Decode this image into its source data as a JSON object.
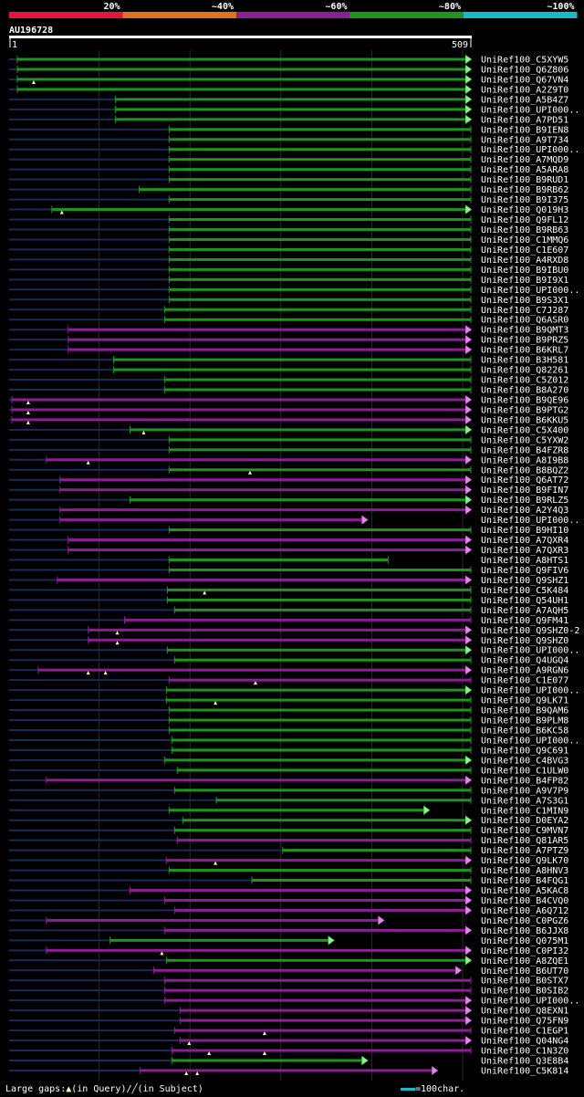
{
  "colors": {
    "background": "#000000",
    "scale": [
      "#e8143c",
      "#e0731a",
      "#8c1e96",
      "#1e961e",
      "#14bcc8"
    ],
    "stub": "#1a2a5a",
    "gap": "#ffffa0"
  },
  "identity_scale": [
    "20%",
    "~40%",
    "~60%",
    "~80%",
    "~100%"
  ],
  "query": {
    "name": "AU196728",
    "start": "1",
    "end": "509"
  },
  "footer": {
    "legend_label": "Large gaps:",
    "legend_query": "(in Query)/",
    "legend_subject": "(in Subject)",
    "scale_text": "=100char."
  },
  "chart_data": {
    "type": "bar",
    "title": "AU196728",
    "xlim": [
      1,
      509
    ],
    "x_ticks": [
      1,
      100,
      200,
      300,
      400,
      500,
      509
    ],
    "series": [
      {
        "name": "UniRef100_C5XYW5",
        "start": 10,
        "end": 509,
        "color": "green",
        "more": true,
        "gaps": []
      },
      {
        "name": "UniRef100_Q6Z806",
        "start": 10,
        "end": 509,
        "color": "green",
        "more": true,
        "gaps": []
      },
      {
        "name": "UniRef100_Q67VN4",
        "start": 10,
        "end": 509,
        "color": "green",
        "more": true,
        "gaps": [
          {
            "pos": 28,
            "type": "query"
          }
        ]
      },
      {
        "name": "UniRef100_A2Z9T0",
        "start": 10,
        "end": 509,
        "color": "green",
        "more": true,
        "gaps": []
      },
      {
        "name": "UniRef100_A5B4Z7",
        "start": 118,
        "end": 509,
        "color": "green",
        "more": true,
        "gaps": []
      },
      {
        "name": "UniRef100_UPI000..",
        "start": 118,
        "end": 509,
        "color": "green",
        "more": true,
        "gaps": []
      },
      {
        "name": "UniRef100_A7PD51",
        "start": 118,
        "end": 509,
        "color": "green",
        "more": true,
        "gaps": []
      },
      {
        "name": "UniRef100_B9IEN8",
        "start": 177,
        "end": 509,
        "color": "green",
        "more": false,
        "gaps": []
      },
      {
        "name": "UniRef100_A9T734",
        "start": 177,
        "end": 509,
        "color": "green",
        "more": false,
        "gaps": []
      },
      {
        "name": "UniRef100_UPI000..",
        "start": 177,
        "end": 509,
        "color": "green",
        "more": false,
        "gaps": []
      },
      {
        "name": "UniRef100_A7MQD9",
        "start": 177,
        "end": 509,
        "color": "green",
        "more": false,
        "gaps": []
      },
      {
        "name": "UniRef100_A5ARA8",
        "start": 177,
        "end": 509,
        "color": "green",
        "more": false,
        "gaps": []
      },
      {
        "name": "UniRef100_B9RUD1",
        "start": 177,
        "end": 509,
        "color": "green",
        "more": false,
        "gaps": []
      },
      {
        "name": "UniRef100_B9RB62",
        "start": 144,
        "end": 509,
        "color": "green",
        "more": false,
        "gaps": []
      },
      {
        "name": "UniRef100_B9I375",
        "start": 177,
        "end": 509,
        "color": "green",
        "more": false,
        "gaps": []
      },
      {
        "name": "UniRef100_Q019H3",
        "start": 48,
        "end": 509,
        "color": "green",
        "more": true,
        "gaps": [
          {
            "pos": 59,
            "type": "query"
          }
        ]
      },
      {
        "name": "UniRef100_Q9FL12",
        "start": 177,
        "end": 509,
        "color": "green",
        "more": false,
        "gaps": []
      },
      {
        "name": "UniRef100_B9RB63",
        "start": 177,
        "end": 509,
        "color": "green",
        "more": false,
        "gaps": []
      },
      {
        "name": "UniRef100_C1MMQ6",
        "start": 177,
        "end": 509,
        "color": "green",
        "more": false,
        "gaps": []
      },
      {
        "name": "UniRef100_C1E607",
        "start": 177,
        "end": 509,
        "color": "green",
        "more": false,
        "gaps": []
      },
      {
        "name": "UniRef100_A4RXD8",
        "start": 177,
        "end": 509,
        "color": "green",
        "more": false,
        "gaps": []
      },
      {
        "name": "UniRef100_B9IBU0",
        "start": 177,
        "end": 509,
        "color": "green",
        "more": false,
        "gaps": []
      },
      {
        "name": "UniRef100_B9I9X1",
        "start": 177,
        "end": 509,
        "color": "green",
        "more": false,
        "gaps": []
      },
      {
        "name": "UniRef100_UPI000..",
        "start": 177,
        "end": 509,
        "color": "green",
        "more": false,
        "gaps": []
      },
      {
        "name": "UniRef100_B9S3X1",
        "start": 177,
        "end": 509,
        "color": "green",
        "more": false,
        "gaps": []
      },
      {
        "name": "UniRef100_C7J287",
        "start": 172,
        "end": 509,
        "color": "green",
        "more": false,
        "gaps": []
      },
      {
        "name": "UniRef100_Q6ASR0",
        "start": 172,
        "end": 509,
        "color": "green",
        "more": false,
        "gaps": []
      },
      {
        "name": "UniRef100_B9QMT3",
        "start": 66,
        "end": 509,
        "color": "purple",
        "more": true,
        "gaps": []
      },
      {
        "name": "UniRef100_B9PRZ5",
        "start": 66,
        "end": 509,
        "color": "purple",
        "more": true,
        "gaps": []
      },
      {
        "name": "UniRef100_B6KRL7",
        "start": 66,
        "end": 509,
        "color": "purple",
        "more": true,
        "gaps": []
      },
      {
        "name": "UniRef100_B3H581",
        "start": 116,
        "end": 509,
        "color": "green",
        "more": false,
        "gaps": []
      },
      {
        "name": "UniRef100_Q82261",
        "start": 116,
        "end": 509,
        "color": "green",
        "more": false,
        "gaps": []
      },
      {
        "name": "UniRef100_C5Z012",
        "start": 172,
        "end": 509,
        "color": "green",
        "more": false,
        "gaps": []
      },
      {
        "name": "UniRef100_B8A270",
        "start": 172,
        "end": 509,
        "color": "green",
        "more": false,
        "gaps": []
      },
      {
        "name": "UniRef100_B9QE96",
        "start": 4,
        "end": 509,
        "color": "purple",
        "more": true,
        "gaps": [
          {
            "pos": 22,
            "type": "query"
          }
        ]
      },
      {
        "name": "UniRef100_B9PTG2",
        "start": 4,
        "end": 509,
        "color": "purple",
        "more": true,
        "gaps": [
          {
            "pos": 22,
            "type": "query"
          }
        ]
      },
      {
        "name": "UniRef100_B6KKU5",
        "start": 4,
        "end": 509,
        "color": "purple",
        "more": true,
        "gaps": [
          {
            "pos": 22,
            "type": "query"
          }
        ]
      },
      {
        "name": "UniRef100_C5X400",
        "start": 134,
        "end": 509,
        "color": "green",
        "more": true,
        "gaps": [
          {
            "pos": 149,
            "type": "query"
          }
        ]
      },
      {
        "name": "UniRef100_C5YXW2",
        "start": 177,
        "end": 509,
        "color": "green",
        "more": false,
        "gaps": []
      },
      {
        "name": "UniRef100_B4FZR8",
        "start": 177,
        "end": 509,
        "color": "green",
        "more": false,
        "gaps": []
      },
      {
        "name": "UniRef100_A8I9B8",
        "start": 42,
        "end": 509,
        "color": "purple",
        "more": true,
        "gaps": [
          {
            "pos": 88,
            "type": "query"
          }
        ]
      },
      {
        "name": "UniRef100_B8BQZ2",
        "start": 177,
        "end": 509,
        "color": "green",
        "more": false,
        "gaps": [
          {
            "pos": 266,
            "type": "query"
          }
        ]
      },
      {
        "name": "UniRef100_Q6AT72",
        "start": 57,
        "end": 509,
        "color": "purple",
        "more": true,
        "gaps": []
      },
      {
        "name": "UniRef100_B9FIN7",
        "start": 57,
        "end": 509,
        "color": "purple",
        "more": true,
        "gaps": []
      },
      {
        "name": "UniRef100_B9RLZ5",
        "start": 134,
        "end": 509,
        "color": "green",
        "more": true,
        "gaps": []
      },
      {
        "name": "UniRef100_A2Y4Q3",
        "start": 57,
        "end": 509,
        "color": "purple",
        "more": true,
        "gaps": []
      },
      {
        "name": "UniRef100_UPI000..",
        "start": 57,
        "end": 395,
        "color": "purple",
        "more": true,
        "gaps": []
      },
      {
        "name": "UniRef100_B9HI10",
        "start": 177,
        "end": 509,
        "color": "green",
        "more": false,
        "gaps": []
      },
      {
        "name": "UniRef100_A7QXR4",
        "start": 66,
        "end": 509,
        "color": "purple",
        "more": true,
        "gaps": []
      },
      {
        "name": "UniRef100_A7QXR3",
        "start": 66,
        "end": 509,
        "color": "purple",
        "more": true,
        "gaps": []
      },
      {
        "name": "UniRef100_A8HTS1",
        "start": 177,
        "end": 418,
        "color": "green",
        "more": false,
        "gaps": []
      },
      {
        "name": "UniRef100_Q9FIV6",
        "start": 177,
        "end": 509,
        "color": "green",
        "more": false,
        "gaps": []
      },
      {
        "name": "UniRef100_Q9SHZ1",
        "start": 54,
        "end": 509,
        "color": "purple",
        "more": true,
        "gaps": []
      },
      {
        "name": "UniRef100_C5K484",
        "start": 175,
        "end": 509,
        "color": "green",
        "more": false,
        "gaps": [
          {
            "pos": 216,
            "type": "query"
          }
        ]
      },
      {
        "name": "UniRef100_Q54UH1",
        "start": 175,
        "end": 509,
        "color": "green",
        "more": false,
        "gaps": []
      },
      {
        "name": "UniRef100_A7AQH5",
        "start": 183,
        "end": 509,
        "color": "green",
        "more": false,
        "gaps": []
      },
      {
        "name": "UniRef100_Q9FM41",
        "start": 128,
        "end": 509,
        "color": "purple",
        "more": false,
        "gaps": []
      },
      {
        "name": "UniRef100_Q9SHZ0-2",
        "start": 88,
        "end": 509,
        "color": "purple",
        "more": true,
        "gaps": [
          {
            "pos": 120,
            "type": "query"
          }
        ]
      },
      {
        "name": "UniRef100_Q9SHZ0",
        "start": 88,
        "end": 509,
        "color": "purple",
        "more": true,
        "gaps": [
          {
            "pos": 120,
            "type": "query"
          }
        ]
      },
      {
        "name": "UniRef100_UPI000..",
        "start": 175,
        "end": 509,
        "color": "green",
        "more": true,
        "gaps": []
      },
      {
        "name": "UniRef100_Q4UGQ4",
        "start": 183,
        "end": 509,
        "color": "green",
        "more": false,
        "gaps": []
      },
      {
        "name": "UniRef100_A9RGN6",
        "start": 33,
        "end": 509,
        "color": "purple",
        "more": true,
        "gaps": [
          {
            "pos": 88,
            "type": "query"
          },
          {
            "pos": 107,
            "type": "query"
          }
        ]
      },
      {
        "name": "UniRef100_C1E077",
        "start": 177,
        "end": 509,
        "color": "purple",
        "more": false,
        "gaps": [
          {
            "pos": 272,
            "type": "query"
          }
        ]
      },
      {
        "name": "UniRef100_UPI000..",
        "start": 174,
        "end": 509,
        "color": "green",
        "more": true,
        "gaps": []
      },
      {
        "name": "UniRef100_Q9LK71",
        "start": 174,
        "end": 509,
        "color": "green",
        "more": false,
        "gaps": [
          {
            "pos": 228,
            "type": "query"
          }
        ]
      },
      {
        "name": "UniRef100_B9QAM6",
        "start": 177,
        "end": 509,
        "color": "green",
        "more": false,
        "gaps": []
      },
      {
        "name": "UniRef100_B9PLM8",
        "start": 177,
        "end": 509,
        "color": "green",
        "more": false,
        "gaps": []
      },
      {
        "name": "UniRef100_B6KC58",
        "start": 177,
        "end": 509,
        "color": "green",
        "more": false,
        "gaps": []
      },
      {
        "name": "UniRef100_UPI000..",
        "start": 180,
        "end": 509,
        "color": "green",
        "more": false,
        "gaps": []
      },
      {
        "name": "UniRef100_Q9C691",
        "start": 180,
        "end": 509,
        "color": "green",
        "more": false,
        "gaps": []
      },
      {
        "name": "UniRef100_C4BVG3",
        "start": 172,
        "end": 509,
        "color": "green",
        "more": true,
        "gaps": []
      },
      {
        "name": "UniRef100_C1ULW0",
        "start": 186,
        "end": 509,
        "color": "green",
        "more": false,
        "gaps": []
      },
      {
        "name": "UniRef100_B4FP82",
        "start": 42,
        "end": 509,
        "color": "purple",
        "more": true,
        "gaps": []
      },
      {
        "name": "UniRef100_A9V7P9",
        "start": 183,
        "end": 509,
        "color": "green",
        "more": false,
        "gaps": []
      },
      {
        "name": "UniRef100_A7S3G1",
        "start": 229,
        "end": 509,
        "color": "green",
        "more": false,
        "gaps": []
      },
      {
        "name": "UniRef100_C1MIN9",
        "start": 177,
        "end": 463,
        "color": "green",
        "more": true,
        "gaps": []
      },
      {
        "name": "UniRef100_D0EYA2",
        "start": 192,
        "end": 509,
        "color": "green",
        "more": true,
        "gaps": []
      },
      {
        "name": "UniRef100_C9MVN7",
        "start": 183,
        "end": 509,
        "color": "green",
        "more": false,
        "gaps": []
      },
      {
        "name": "UniRef100_Q81AR5",
        "start": 186,
        "end": 509,
        "color": "purple",
        "more": false,
        "gaps": []
      },
      {
        "name": "UniRef100_A7PTZ9",
        "start": 302,
        "end": 509,
        "color": "green",
        "more": false,
        "gaps": []
      },
      {
        "name": "UniRef100_Q9LK70",
        "start": 174,
        "end": 509,
        "color": "purple",
        "more": true,
        "gaps": [
          {
            "pos": 228,
            "type": "query"
          }
        ]
      },
      {
        "name": "UniRef100_A8HNV3",
        "start": 177,
        "end": 509,
        "color": "green",
        "more": false,
        "gaps": []
      },
      {
        "name": "UniRef100_B4FQG1",
        "start": 268,
        "end": 509,
        "color": "green",
        "more": false,
        "gaps": []
      },
      {
        "name": "UniRef100_A5KAC8",
        "start": 134,
        "end": 509,
        "color": "purple",
        "more": true,
        "gaps": []
      },
      {
        "name": "UniRef100_B4CVQ0",
        "start": 172,
        "end": 509,
        "color": "purple",
        "more": true,
        "gaps": []
      },
      {
        "name": "UniRef100_A6Q712",
        "start": 183,
        "end": 509,
        "color": "purple",
        "more": true,
        "gaps": []
      },
      {
        "name": "UniRef100_C0PGZ6",
        "start": 42,
        "end": 413,
        "color": "purple",
        "more": true,
        "gaps": []
      },
      {
        "name": "UniRef100_B6JJX8",
        "start": 172,
        "end": 509,
        "color": "purple",
        "more": true,
        "gaps": []
      },
      {
        "name": "UniRef100_Q075M1",
        "start": 112,
        "end": 358,
        "color": "green",
        "more": true,
        "gaps": []
      },
      {
        "name": "UniRef100_C0PI32",
        "start": 42,
        "end": 509,
        "color": "purple",
        "more": true,
        "gaps": [
          {
            "pos": 169,
            "type": "query"
          }
        ]
      },
      {
        "name": "UniRef100_A8ZQE1",
        "start": 174,
        "end": 509,
        "color": "green",
        "more": true,
        "gaps": []
      },
      {
        "name": "UniRef100_B6UT70",
        "start": 160,
        "end": 498,
        "color": "purple",
        "more": true,
        "gaps": []
      },
      {
        "name": "UniRef100_B0STX7",
        "start": 172,
        "end": 509,
        "color": "purple",
        "more": false,
        "gaps": []
      },
      {
        "name": "UniRef100_B0SIB2",
        "start": 172,
        "end": 509,
        "color": "purple",
        "more": false,
        "gaps": []
      },
      {
        "name": "UniRef100_UPI000..",
        "start": 172,
        "end": 509,
        "color": "purple",
        "more": true,
        "gaps": []
      },
      {
        "name": "UniRef100_Q8EXN1",
        "start": 189,
        "end": 509,
        "color": "purple",
        "more": true,
        "gaps": []
      },
      {
        "name": "UniRef100_Q75FN9",
        "start": 189,
        "end": 509,
        "color": "purple",
        "more": true,
        "gaps": []
      },
      {
        "name": "UniRef100_C1EGP1",
        "start": 183,
        "end": 509,
        "color": "purple",
        "more": false,
        "gaps": [
          {
            "pos": 282,
            "type": "query"
          }
        ]
      },
      {
        "name": "UniRef100_Q04NG4",
        "start": 189,
        "end": 509,
        "color": "purple",
        "more": true,
        "gaps": [
          {
            "pos": 199,
            "type": "query"
          }
        ]
      },
      {
        "name": "UniRef100_C1N3Z0",
        "start": 180,
        "end": 509,
        "color": "purple",
        "more": false,
        "gaps": [
          {
            "pos": 221,
            "type": "query"
          },
          {
            "pos": 282,
            "type": "query"
          }
        ]
      },
      {
        "name": "UniRef100_Q3E8B4",
        "start": 180,
        "end": 395,
        "color": "green",
        "more": true,
        "gaps": []
      },
      {
        "name": "UniRef100_C5K814",
        "start": 145,
        "end": 472,
        "color": "purple",
        "more": true,
        "gaps": [
          {
            "pos": 196,
            "type": "query"
          },
          {
            "pos": 208,
            "type": "query"
          }
        ]
      }
    ]
  }
}
